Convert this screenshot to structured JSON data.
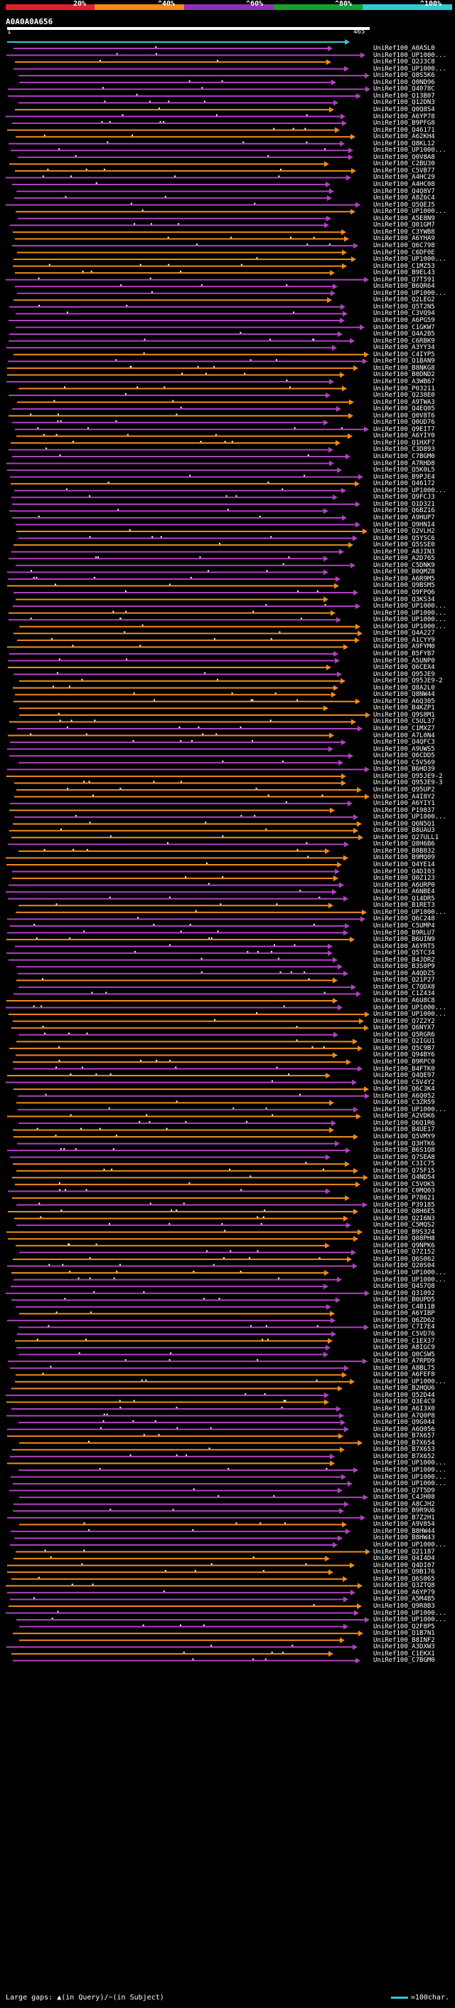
{
  "colors": {
    "background": "#000000",
    "orange": "#f08a1c",
    "magenta": "#b040c0",
    "cyan": "#35c8d6",
    "white": "#ffffff"
  },
  "legend": {
    "bands": [
      {
        "label": "20%",
        "color": "#e0202a"
      },
      {
        "label": "^40%",
        "color": "#f08a1c"
      },
      {
        "label": "^60%",
        "color": "#9030b0"
      },
      {
        "label": "^80%",
        "color": "#16a030"
      },
      {
        "label": "^100%",
        "color": "#35c8d6"
      }
    ]
  },
  "query": {
    "name": "A0A0A0A656",
    "start": "1",
    "end": "465"
  },
  "footer": {
    "gaps": "Large gaps: ▲(in Query)/~(in Subject)",
    "scale": "=100char."
  },
  "hits": [
    "UniRef100_A0A5L0",
    "UniRef100_UP1000...",
    "UniRef100_Q2J3C8",
    "UniRef100_UP1000...",
    "UniRef100_Q8S5K6",
    "UniRef100_Q0ND96",
    "UniRef100_Q4078C",
    "UniRef100_Q13B07",
    "UniRef100_Q12DN3",
    "UniRef100_Q0Q8S4",
    "UniRef100_A6YP78",
    "UniRef100_B9PFG8",
    "UniRef100_Q46171",
    "UniRef100_A62KH4",
    "UniRef100_Q8KL12",
    "UniRef100_UP1000...",
    "UniRef100_Q0V8A8",
    "UniRef100_C2BU30",
    "UniRef100_C5VB77",
    "UniRef100_A4HC29",
    "UniRef100_A4HC08",
    "UniRef100_Q4Q8V7",
    "UniRef100_A8Z6C4",
    "UniRef100_Q5QEJ5",
    "UniRef100_UP1000...",
    "UniRef100_A5E8N9",
    "UniRef100_Q01GM7",
    "UniRef100_C3YWB8",
    "UniRef100_A6YHA9",
    "UniRef100_Q6C798",
    "UniRef100_C6DF0E",
    "UniRef100_UP1000...",
    "UniRef100_C1MZ53",
    "UniRef100_B9EL43",
    "UniRef100_Q7T591",
    "UniRef100_B6QR64",
    "UniRef100_UP1000...",
    "UniRef100_Q2LEG2",
    "UniRef100_Q5T2N5",
    "UniRef100_C3VQ94",
    "UniRef100_A6PG59",
    "UniRef100_C1GKW7",
    "UniRef100_Q4A2B5",
    "UniRef100_C6RBK9",
    "UniRef100_A3YY34",
    "UniRef100_C4IYP5",
    "UniRef100_Q1BAN9",
    "UniRef100_B8NKG8",
    "UniRef100_B0DND2",
    "UniRef100_A3WB67",
    "UniRef100_P03211",
    "UniRef100_Q238E0",
    "UniRef100_A9TWA3",
    "UniRef100_Q4EQ05",
    "UniRef100_Q0V8T6",
    "UniRef100_Q0UD76",
    "UniRef100_Q9EIT7",
    "UniRef100_A6YIY0",
    "UniRef100_Q1HXF7",
    "UniRef100_C3D893",
    "UniRef100_C7BGM0",
    "UniRef100_A7RHD8",
    "UniRef100_Q5K0L5",
    "UniRef100_B9PJE4",
    "UniRef100_Q46172",
    "UniRef100_UP1000...",
    "UniRef100_Q9FCJ3",
    "UniRef100_Q1D321",
    "UniRef100_Q6BZ16",
    "UniRef100_A9HUP7",
    "UniRef100_Q9HNI4",
    "UniRef100_Q2VLH2",
    "UniRef100_Q5YSC6",
    "UniRef100_Q5SSE0",
    "UniRef100_A8JIN3",
    "UniRef100_A2D765",
    "UniRef100_C5DNK9",
    "UniRef100_B0QMZ8",
    "UniRef100_A6R9M5",
    "UniRef100_Q9BSM5",
    "UniRef100_Q9FPQ6",
    "UniRef100_Q3KS34",
    "UniRef100_UP1000...",
    "UniRef100_UP1000...",
    "UniRef100_UP1000...",
    "UniRef100_UP1000...",
    "UniRef100_Q4A227",
    "UniRef100_A1CYY9",
    "UniRef100_A9FYM0",
    "UniRef100_B5FYB7",
    "UniRef100_A5UNP0",
    "UniRef100_Q6CEX4",
    "UniRef100_Q95JE9",
    "UniRef100_Q95JE9-2",
    "UniRef100_Q8A2L0",
    "UniRef100_Q8NW44",
    "UniRef100_A6Q305",
    "UniRef100_B4KZP1",
    "UniRef100_Q9S8M1",
    "UniRef100_C5UL37",
    "UniRef100_C1MXZ7",
    "UniRef100_A7L0N4",
    "UniRef100_Q4QFC3",
    "UniRef100_A9UWS5",
    "UniRef100_Q6CDD5",
    "UniRef100_C5V569",
    "UniRef100_B6HD39",
    "UniRef100_Q95JE9-2",
    "UniRef100_Q95JE9-3",
    "UniRef100_Q95UP2",
    "UniRef100_A4I8Y2",
    "UniRef100_A6YIY1",
    "UniRef100_P19837",
    "UniRef100_UP1000...",
    "UniRef100_Q6N5Q1",
    "UniRef100_B8UAU3",
    "UniRef100_Q27ULL1",
    "UniRef100_Q8H6B6",
    "UniRef100_B8B832",
    "UniRef100_B9MQ09",
    "UniRef100_Q4YE14",
    "UniRef100_Q4DI03",
    "UniRef100_Q0Z123",
    "UniRef100_A6URP0",
    "UniRef100_A6NBE4",
    "UniRef100_Q14DR5",
    "UniRef100_B1RET3",
    "UniRef100_UP1000...",
    "UniRef100_Q6C248",
    "UniRef100_C5UMP4",
    "UniRef100_B9RLU7",
    "UniRef100_B6UIN9",
    "UniRef100_A6YRT5",
    "UniRef100_Q5TC34",
    "UniRef100_B4JDR2",
    "UniRef100_B3S0P9",
    "UniRef100_A4QDZ5",
    "UniRef100_Q21P27",
    "UniRef100_C7QDX8",
    "UniRef100_C1Z434",
    "UniRef100_A6U8C8",
    "UniRef100_UP1000...",
    "UniRef100_UP1000...",
    "UniRef100_Q7Z2Y2",
    "UniRef100_Q6NYX7",
    "UniRef100_Q5RGR6",
    "UniRef100_Q2IGU1",
    "UniRef100_Q5C9B7",
    "UniRef100_Q94BY6",
    "UniRef100_B9RPC0",
    "UniRef100_B4FTK0",
    "UniRef100_Q4QE97",
    "UniRef100_C5V4Y2",
    "UniRef100_Q6C3K4",
    "UniRef100_A6Q052",
    "UniRef100_C3ZR59",
    "UniRef100_UP1000...",
    "UniRef100_A2VDK6",
    "UniRef100_Q6Q1R6",
    "UniRef100_B4UE17",
    "UniRef100_Q5VMY9",
    "UniRef100_Q3HTK6",
    "UniRef100_B6S1Q8",
    "UniRef100_Q7SEA8",
    "UniRef100_C3IC75",
    "UniRef100_Q75F15",
    "UniRef100_Q4ND54",
    "UniRef100_C5VOK5",
    "UniRef100_C0MQ03",
    "UniRef100_P78621",
    "UniRef100_P39185",
    "UniRef100_Q8H6E5",
    "UniRef100_Q2I6N3",
    "UniRef100_C5MQS2",
    "UniRef100_B9S324",
    "UniRef100_Q08PH8",
    "UniRef100_Q9NPK6",
    "UniRef100_Q7Z152",
    "UniRef100_Q6S062",
    "UniRef100_Q20S04",
    "UniRef100_UP1000...",
    "UniRef100_UP1000...",
    "UniRef100_Q4S7Q8",
    "UniRef100_Q31092",
    "UniRef100_B0UPD5",
    "UniRef100_C4B11B",
    "UniRef100_A6YIBP",
    "UniRef100_Q6ZD62",
    "UniRef100_C7I7E4",
    "UniRef100_C5VD76",
    "UniRef100_C1EX37",
    "UniRef100_A8IGC9",
    "UniRef100_Q0CSW5",
    "UniRef100_A7RPD9",
    "UniRef100_A8BL75",
    "UniRef100_A6FEF8",
    "UniRef100_UP1000...",
    "UniRef100_B2HQU6",
    "UniRef100_Q52D44",
    "UniRef100_Q3E4C9",
    "UniRef100_A6I3X0",
    "UniRef100_A7Q0P8",
    "UniRef100_Q9G044",
    "UniRef100_A6Q056",
    "UniRef100_B7X657",
    "UniRef100_B7X654",
    "UniRef100_B7X653",
    "UniRef100_B7X652",
    "UniRef100_UP1000...",
    "UniRef100_UP1000...",
    "UniRef100_UP1000...",
    "UniRef100_UP1000...",
    "UniRef100_Q7T5D9",
    "UniRef100_C4JH08",
    "UniRef100_A8CJH2",
    "UniRef100_B9R9U6",
    "UniRef100_B7Z2H1",
    "UniRef100_A9V854",
    "UniRef100_B8HW44",
    "UniRef100_B8HW43",
    "UniRef100_UP1000...",
    "UniRef100_Q21187",
    "UniRef100_Q4I4D4",
    "UniRef100_Q4DI07",
    "UniRef100_Q9B176",
    "UniRef100_Q6S065",
    "UniRef100_Q3ZTQ8",
    "UniRef100_A6YP79",
    "UniRef100_A5M4B5",
    "UniRef100_Q9R8B3",
    "UniRef100_UP1000...",
    "UniRef100_UP1000...",
    "UniRef100_Q2F8P5",
    "UniRef100_Q1B7N1",
    "UniRef100_B8INF2",
    "UniRef100_A3DXW3",
    "UniRef100_C1EKX1",
    "UniRef100_C7BGM0"
  ]
}
